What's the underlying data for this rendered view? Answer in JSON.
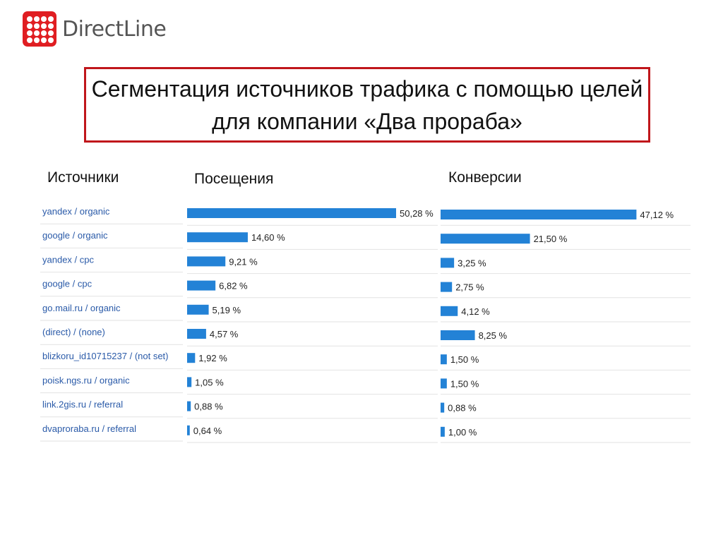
{
  "brand": {
    "name": "DirectLine",
    "logo_icon": "dot-grid-logo-icon",
    "accent": "#e01e22"
  },
  "title": "Сегментация источников трафика с помощью целей для компании «Два прораба»",
  "headers": {
    "sources": "Источники",
    "visits": "Посещения",
    "conversions": "Конверсии"
  },
  "chart_data": {
    "type": "bar",
    "orientation": "horizontal",
    "categories": [
      "yandex / organic",
      "google / organic",
      "yandex / cpc",
      "google / cpc",
      "go.mail.ru / organic",
      "(direct) / (none)",
      "blizkoru_id10715237 / (not set)",
      "poisk.ngs.ru / organic",
      "link.2gis.ru / referral",
      "dvaproraba.ru / referral"
    ],
    "series": [
      {
        "name": "Посещения",
        "values": [
          50.28,
          14.6,
          9.21,
          6.82,
          5.19,
          4.57,
          1.92,
          1.05,
          0.88,
          0.64
        ],
        "labels": [
          "50,28 %",
          "14,60 %",
          "9,21 %",
          "6,82 %",
          "5,19 %",
          "4,57 %",
          "1,92 %",
          "1,05 %",
          "0,88 %",
          "0,64 %"
        ]
      },
      {
        "name": "Конверсии",
        "values": [
          47.12,
          21.5,
          3.25,
          2.75,
          4.12,
          8.25,
          1.5,
          1.5,
          0.88,
          1.0
        ],
        "labels": [
          "47,12 %",
          "21,50 %",
          "3,25 %",
          "2,75 %",
          "4,12 %",
          "8,25 %",
          "1,50 %",
          "1,50 %",
          "0,88 %",
          "1,00 %"
        ]
      }
    ],
    "bar_color": "#2382d6",
    "grid": false
  }
}
